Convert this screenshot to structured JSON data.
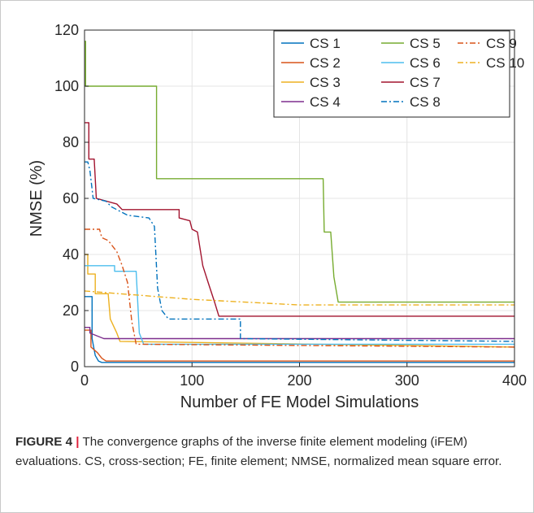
{
  "chart_data": {
    "type": "line",
    "xlabel": "Number of FE Model Simulations",
    "ylabel": "NMSE (%)",
    "xlim": [
      0,
      400
    ],
    "ylim": [
      0,
      120
    ],
    "xticks": [
      0,
      100,
      200,
      300,
      400
    ],
    "yticks": [
      0,
      20,
      40,
      60,
      80,
      100,
      120
    ],
    "grid": true,
    "legend_position": "top-right",
    "legend_columns": 3,
    "series": [
      {
        "name": "CS 1",
        "color": "#0072bd",
        "dash": "solid",
        "points": [
          [
            0,
            25
          ],
          [
            7,
            25
          ],
          [
            7,
            10
          ],
          [
            10,
            4
          ],
          [
            13,
            2
          ],
          [
            16,
            1.5
          ],
          [
            400,
            1.5
          ]
        ]
      },
      {
        "name": "CS 2",
        "color": "#d95319",
        "dash": "solid",
        "points": [
          [
            0,
            13
          ],
          [
            6,
            13
          ],
          [
            6,
            7
          ],
          [
            12,
            5
          ],
          [
            16,
            3
          ],
          [
            20,
            2
          ],
          [
            400,
            2
          ]
        ]
      },
      {
        "name": "CS 3",
        "color": "#edb120",
        "dash": "solid",
        "points": [
          [
            0,
            40
          ],
          [
            3,
            40
          ],
          [
            3,
            33
          ],
          [
            10,
            33
          ],
          [
            10,
            26
          ],
          [
            22,
            26
          ],
          [
            24,
            17
          ],
          [
            30,
            12
          ],
          [
            33,
            9
          ],
          [
            400,
            7
          ]
        ]
      },
      {
        "name": "CS 4",
        "color": "#7e2f8e",
        "dash": "solid",
        "points": [
          [
            0,
            14
          ],
          [
            5,
            14
          ],
          [
            5,
            12
          ],
          [
            18,
            10
          ],
          [
            400,
            10
          ]
        ]
      },
      {
        "name": "CS 5",
        "color": "#77ac30",
        "dash": "solid",
        "points": [
          [
            0,
            116
          ],
          [
            1,
            116
          ],
          [
            1,
            100
          ],
          [
            67,
            100
          ],
          [
            67,
            67
          ],
          [
            222,
            67
          ],
          [
            223,
            48
          ],
          [
            229,
            48
          ],
          [
            232,
            32
          ],
          [
            236,
            23
          ],
          [
            400,
            23
          ]
        ]
      },
      {
        "name": "CS 6",
        "color": "#4dbeee",
        "dash": "solid",
        "points": [
          [
            0,
            36
          ],
          [
            28,
            36
          ],
          [
            28,
            34
          ],
          [
            48,
            34
          ],
          [
            51,
            12
          ],
          [
            55,
            8
          ],
          [
            400,
            8
          ]
        ]
      },
      {
        "name": "CS 7",
        "color": "#a2142f",
        "dash": "solid",
        "points": [
          [
            0,
            87
          ],
          [
            4,
            87
          ],
          [
            4,
            74
          ],
          [
            9,
            74
          ],
          [
            11,
            60
          ],
          [
            30,
            58
          ],
          [
            35,
            56
          ],
          [
            88,
            56
          ],
          [
            88,
            53
          ],
          [
            98,
            52
          ],
          [
            100,
            49
          ],
          [
            105,
            48
          ],
          [
            110,
            36
          ],
          [
            115,
            30
          ],
          [
            121,
            23
          ],
          [
            125,
            18
          ],
          [
            260,
            18
          ],
          [
            400,
            18
          ]
        ]
      },
      {
        "name": "CS 8",
        "color": "#0072bd",
        "dash": "dashdot",
        "points": [
          [
            0,
            73
          ],
          [
            3,
            73
          ],
          [
            5,
            70
          ],
          [
            8,
            60
          ],
          [
            20,
            59
          ],
          [
            25,
            57
          ],
          [
            40,
            54
          ],
          [
            60,
            53
          ],
          [
            65,
            50
          ],
          [
            68,
            28
          ],
          [
            72,
            20
          ],
          [
            78,
            17
          ],
          [
            145,
            17
          ],
          [
            145,
            10
          ],
          [
            400,
            9
          ]
        ]
      },
      {
        "name": "CS 9",
        "color": "#d95319",
        "dash": "dashdot",
        "points": [
          [
            0,
            49
          ],
          [
            14,
            49
          ],
          [
            16,
            46
          ],
          [
            22,
            45
          ],
          [
            30,
            41
          ],
          [
            35,
            36
          ],
          [
            40,
            30
          ],
          [
            44,
            16
          ],
          [
            48,
            8
          ],
          [
            400,
            7
          ]
        ]
      },
      {
        "name": "CS 10",
        "color": "#edb120",
        "dash": "dashdot",
        "points": [
          [
            0,
            27
          ],
          [
            100,
            24
          ],
          [
            200,
            22
          ],
          [
            400,
            22
          ]
        ]
      }
    ]
  },
  "caption": {
    "label": "FIGURE 4",
    "separator": "|",
    "text": "The convergence graphs of the inverse finite element modeling (iFEM) evaluations. CS, cross-section; FE, finite element; NMSE, normalized mean square error."
  }
}
